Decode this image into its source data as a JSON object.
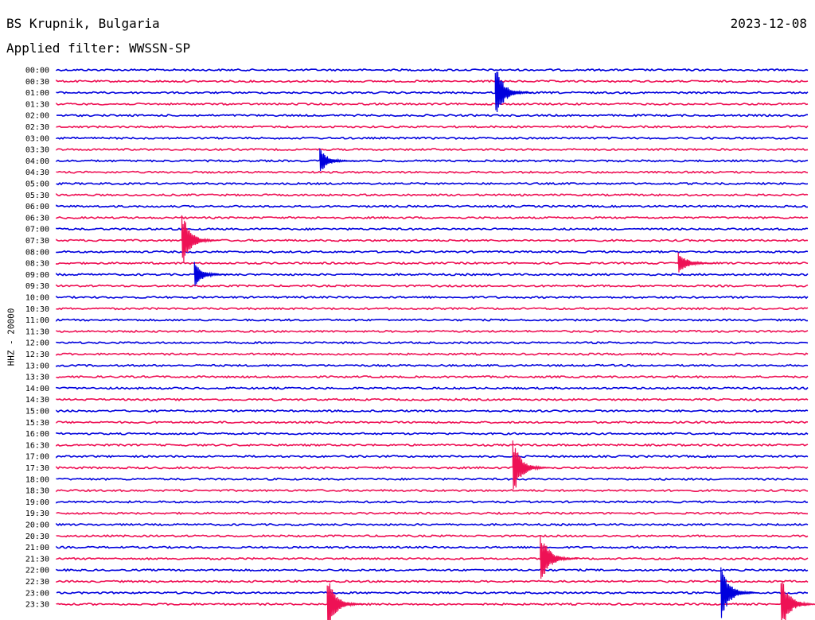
{
  "header": {
    "station": "BS Krupnik, Bulgaria",
    "date": "2023-12-08",
    "filter": "Applied filter: WWSSN-SP"
  },
  "chart_data": {
    "type": "line",
    "title": "BS Krupnik, Bulgaria",
    "ylabel": "HHZ - 20000",
    "colors": [
      "#0000dd",
      "#ee1155"
    ],
    "row_labels": [
      "00:00",
      "00:30",
      "01:00",
      "01:30",
      "02:00",
      "02:30",
      "03:00",
      "03:30",
      "04:00",
      "04:30",
      "05:00",
      "05:30",
      "06:00",
      "06:30",
      "07:00",
      "07:30",
      "08:00",
      "08:30",
      "09:00",
      "09:30",
      "10:00",
      "10:30",
      "11:00",
      "11:30",
      "12:00",
      "12:30",
      "13:00",
      "13:30",
      "14:00",
      "14:30",
      "15:00",
      "15:30",
      "16:00",
      "16:30",
      "17:00",
      "17:30",
      "18:00",
      "18:30",
      "19:00",
      "19:30",
      "20:00",
      "20:30",
      "21:00",
      "21:30",
      "22:00",
      "22:30",
      "23:00",
      "23:30"
    ],
    "events": [
      {
        "row": "01:00",
        "minute": 17.5,
        "amplitude": "large"
      },
      {
        "row": "04:00",
        "minute": 10.5,
        "amplitude": "medium"
      },
      {
        "row": "07:30",
        "minute": 5.0,
        "amplitude": "large"
      },
      {
        "row": "09:00",
        "minute": 5.5,
        "amplitude": "medium"
      },
      {
        "row": "08:30",
        "minute": 24.8,
        "amplitude": "medium"
      },
      {
        "row": "17:30",
        "minute": 18.2,
        "amplitude": "large"
      },
      {
        "row": "21:30",
        "minute": 19.3,
        "amplitude": "large"
      },
      {
        "row": "23:30",
        "minute": 10.8,
        "amplitude": "large"
      },
      {
        "row": "23:00",
        "minute": 26.5,
        "amplitude": "large"
      },
      {
        "row": "23:30",
        "minute": 28.9,
        "amplitude": "large"
      }
    ]
  }
}
